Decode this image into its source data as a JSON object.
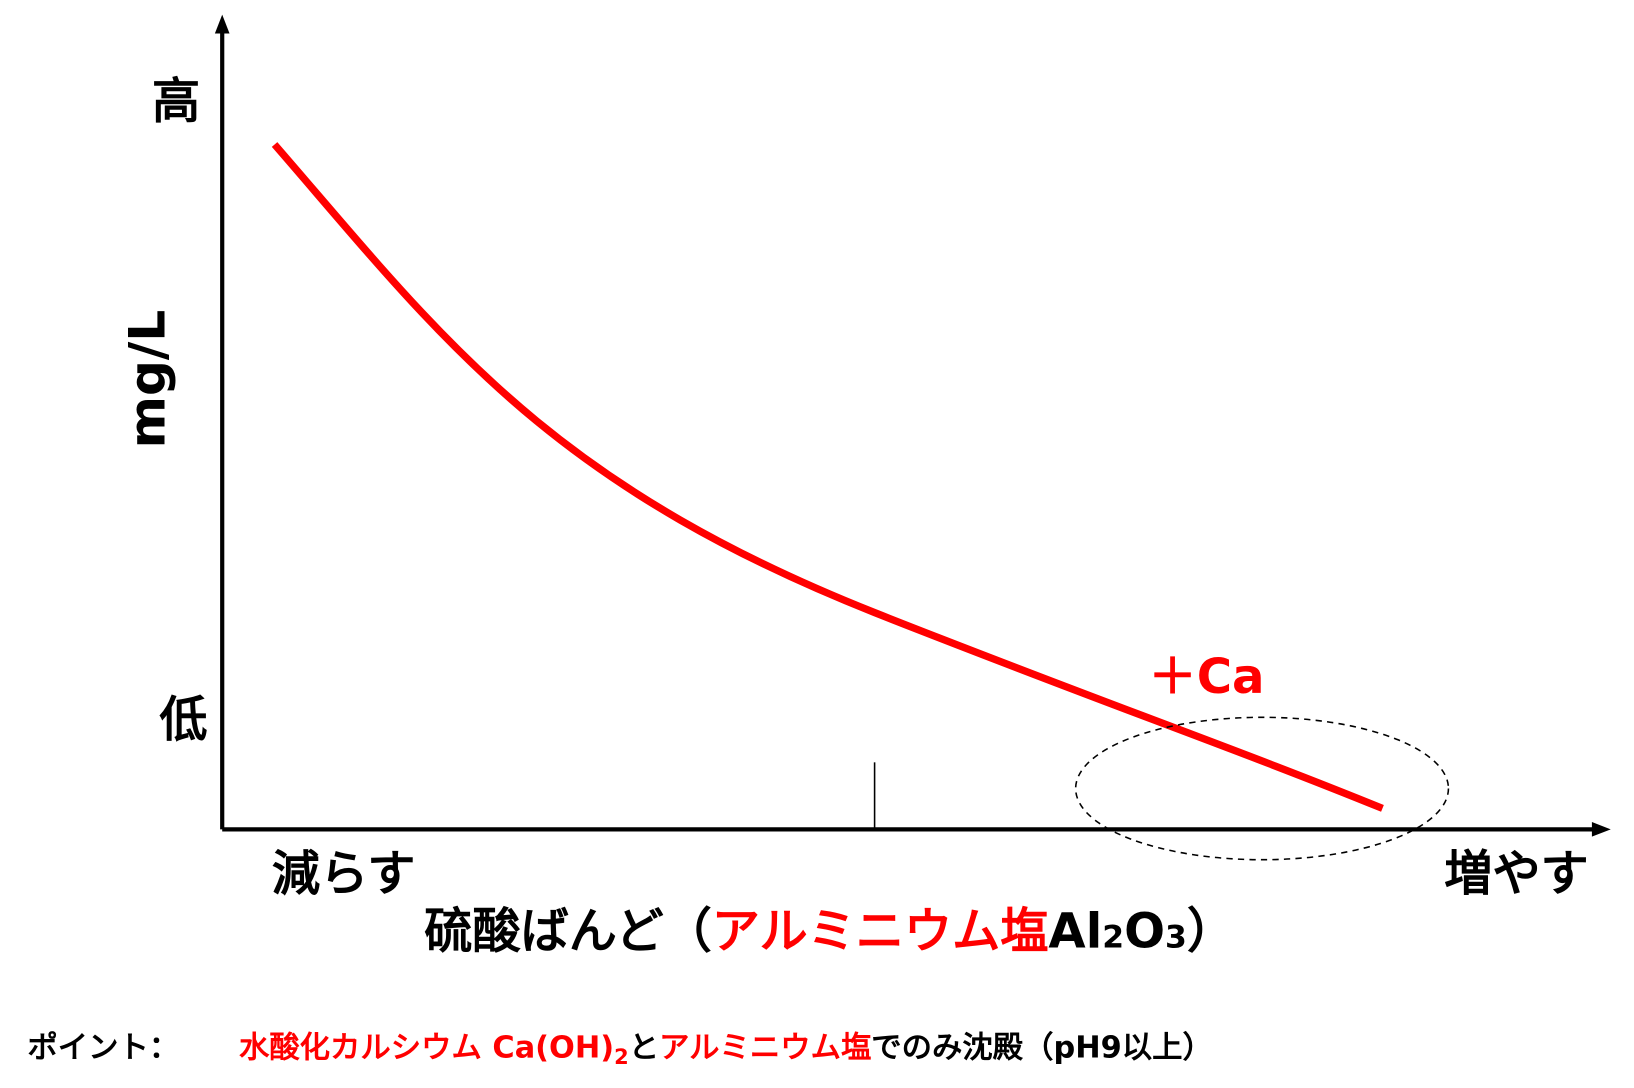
{
  "y_axis": {
    "label": "mg/L",
    "top": "高",
    "bottom": "低"
  },
  "x_axis": {
    "left": "減らす",
    "right": "増やす",
    "title": [
      "硫酸ばんど（",
      "アルミニウム塩",
      "Al",
      "2",
      "O",
      "3",
      "）"
    ]
  },
  "annotation": "＋Ca",
  "note": [
    "ポイント：",
    "水酸化カルシウム Ca(OH)",
    "2",
    "と",
    "アルミニウム塩",
    "でのみ沈殿（pH9以上）"
  ]
}
